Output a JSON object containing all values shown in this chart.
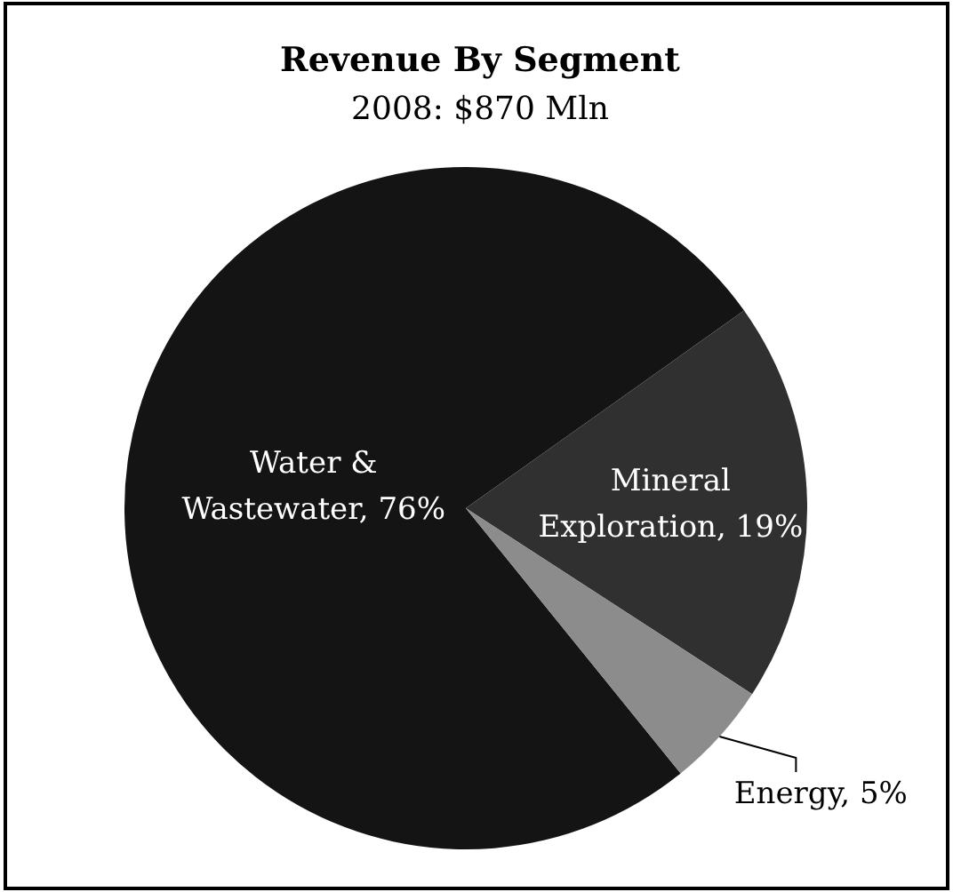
{
  "chart_data": {
    "type": "pie",
    "title": "Revenue By Segment",
    "subtitle": "2008: $870 Mln",
    "categories": [
      "Water & Wastewater",
      "Mineral Exploration",
      "Energy"
    ],
    "values": [
      76,
      19,
      5
    ],
    "colors": [
      "#141414",
      "#303030",
      "#8c8c8c"
    ],
    "value_labels": [
      "76%",
      "19%",
      "5%"
    ]
  }
}
